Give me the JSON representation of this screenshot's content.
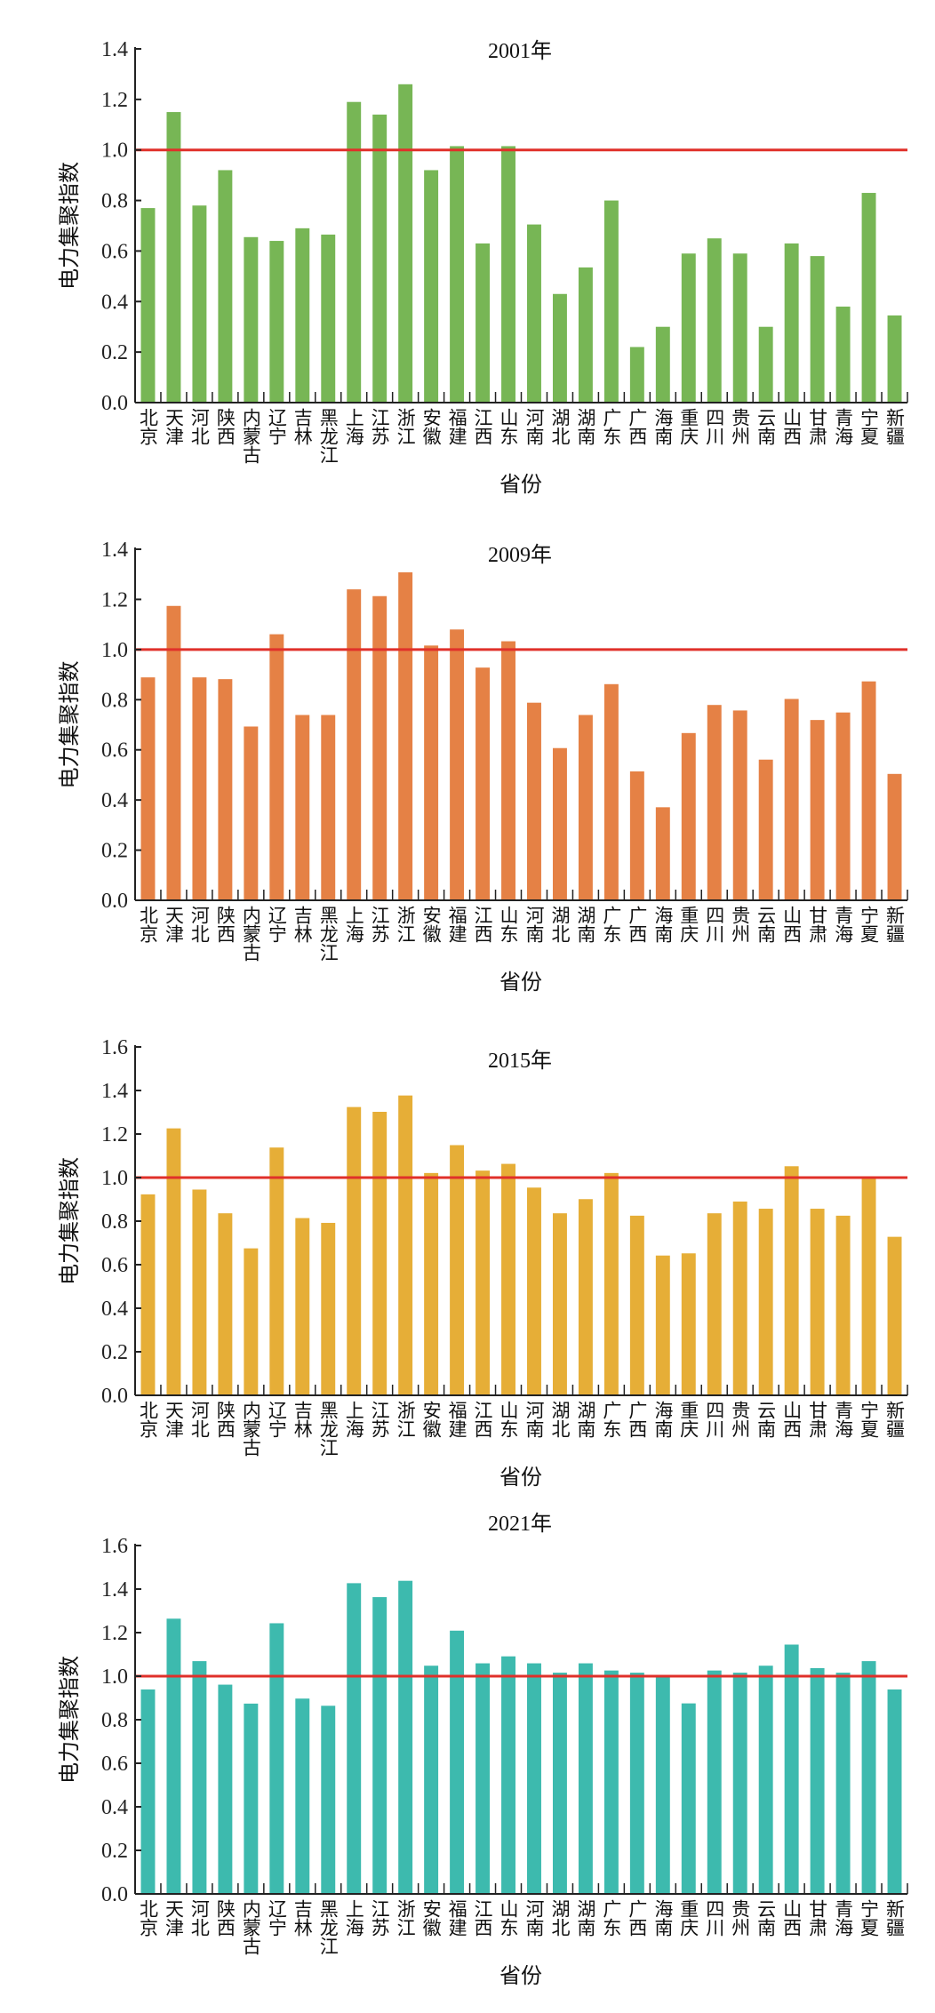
{
  "chart_data": [
    {
      "type": "bar",
      "title": "2001年",
      "xlabel": "省份",
      "ylabel": "电力集聚指数",
      "ylim": [
        0,
        1.4
      ],
      "yticks": [
        "0.0",
        "0.2",
        "0.4",
        "0.6",
        "0.8",
        "1.0",
        "1.2",
        "1.4"
      ],
      "reference_line": 1.0,
      "bar_color": "#77b655",
      "categories": [
        "北京",
        "天津",
        "河北",
        "陕西",
        "内蒙古",
        "辽宁",
        "吉林",
        "黑龙江",
        "上海",
        "江苏",
        "浙江",
        "安徽",
        "福建",
        "江西",
        "山东",
        "河南",
        "湖北",
        "湖南",
        "广东",
        "广西",
        "海南",
        "重庆",
        "四川",
        "贵州",
        "云南",
        "山西",
        "甘肃",
        "青海",
        "宁夏",
        "新疆"
      ],
      "values": [
        0.77,
        1.15,
        0.78,
        0.92,
        0.655,
        0.64,
        0.69,
        0.665,
        1.19,
        1.14,
        1.26,
        0.92,
        1.015,
        0.63,
        1.015,
        0.705,
        0.43,
        0.535,
        0.8,
        0.22,
        0.3,
        0.59,
        0.65,
        0.59,
        0.3,
        0.63,
        0.58,
        0.38,
        0.83,
        0.345
      ]
    },
    {
      "type": "bar",
      "title": "2009年",
      "xlabel": "省份",
      "ylabel": "电力集聚指数",
      "ylim": [
        0,
        1.4
      ],
      "yticks": [
        "0.0",
        "0.2",
        "0.4",
        "0.6",
        "0.8",
        "1.0",
        "1.2",
        "1.4"
      ],
      "reference_line": 1.0,
      "bar_color": "#e58145",
      "categories": [
        "北京",
        "天津",
        "河北",
        "陕西",
        "内蒙古",
        "辽宁",
        "吉林",
        "黑龙江",
        "上海",
        "江苏",
        "浙江",
        "安徽",
        "福建",
        "江西",
        "山东",
        "河南",
        "湖北",
        "湖南",
        "广东",
        "广西",
        "海南",
        "重庆",
        "四川",
        "贵州",
        "云南",
        "山西",
        "甘肃",
        "青海",
        "宁夏",
        "新疆"
      ],
      "values": [
        0.889,
        1.174,
        0.889,
        0.882,
        0.693,
        1.061,
        0.739,
        0.739,
        1.24,
        1.213,
        1.308,
        1.016,
        1.08,
        0.928,
        1.033,
        0.788,
        0.607,
        0.739,
        0.862,
        0.514,
        0.371,
        0.667,
        0.779,
        0.757,
        0.561,
        0.803,
        0.719,
        0.749,
        0.873,
        0.504
      ]
    },
    {
      "type": "bar",
      "title": "2015年",
      "xlabel": "省份",
      "ylabel": "电力集聚指数",
      "ylim": [
        0,
        1.6
      ],
      "yticks": [
        "0.0",
        "0.2",
        "0.4",
        "0.6",
        "0.8",
        "1.0",
        "1.2",
        "1.4",
        "1.6"
      ],
      "reference_line": 1.0,
      "bar_color": "#e6ae37",
      "categories": [
        "北京",
        "天津",
        "河北",
        "陕西",
        "内蒙古",
        "辽宁",
        "吉林",
        "黑龙江",
        "上海",
        "江苏",
        "浙江",
        "安徽",
        "福建",
        "江西",
        "山东",
        "河南",
        "湖北",
        "湖南",
        "广东",
        "广西",
        "海南",
        "重庆",
        "四川",
        "贵州",
        "云南",
        "山西",
        "甘肃",
        "青海",
        "宁夏",
        "新疆"
      ],
      "values": [
        0.923,
        1.226,
        0.945,
        0.836,
        0.675,
        1.138,
        0.814,
        0.792,
        1.324,
        1.302,
        1.377,
        1.021,
        1.149,
        1.032,
        1.063,
        0.954,
        0.836,
        0.901,
        1.021,
        0.825,
        0.642,
        0.652,
        0.836,
        0.89,
        0.857,
        1.052,
        0.857,
        0.825,
        0.999,
        0.728
      ]
    },
    {
      "type": "bar",
      "title": "2021年",
      "xlabel": "省份",
      "ylabel": "电力集聚指数",
      "ylim": [
        0,
        1.6
      ],
      "yticks": [
        "0.0",
        "0.2",
        "0.4",
        "0.6",
        "0.8",
        "1.0",
        "1.2",
        "1.4",
        "1.6"
      ],
      "reference_line": 1.0,
      "bar_color": "#3dbaae",
      "categories": [
        "北京",
        "天津",
        "河北",
        "陕西",
        "内蒙古",
        "辽宁",
        "吉林",
        "黑龙江",
        "上海",
        "江苏",
        "浙江",
        "安徽",
        "福建",
        "江西",
        "山东",
        "河南",
        "湖北",
        "湖南",
        "广东",
        "广西",
        "海南",
        "重庆",
        "四川",
        "贵州",
        "云南",
        "山西",
        "甘肃",
        "青海",
        "宁夏",
        "新疆"
      ],
      "values": [
        0.939,
        1.264,
        1.069,
        0.961,
        0.874,
        1.243,
        0.897,
        0.864,
        1.427,
        1.363,
        1.438,
        1.048,
        1.209,
        1.059,
        1.091,
        1.059,
        1.016,
        1.059,
        1.026,
        1.016,
        1.005,
        0.875,
        1.026,
        1.016,
        1.048,
        1.145,
        1.037,
        1.016,
        1.069,
        0.939
      ]
    }
  ],
  "colors": {
    "reference_line": "#e0302a",
    "axis": "#222222"
  }
}
